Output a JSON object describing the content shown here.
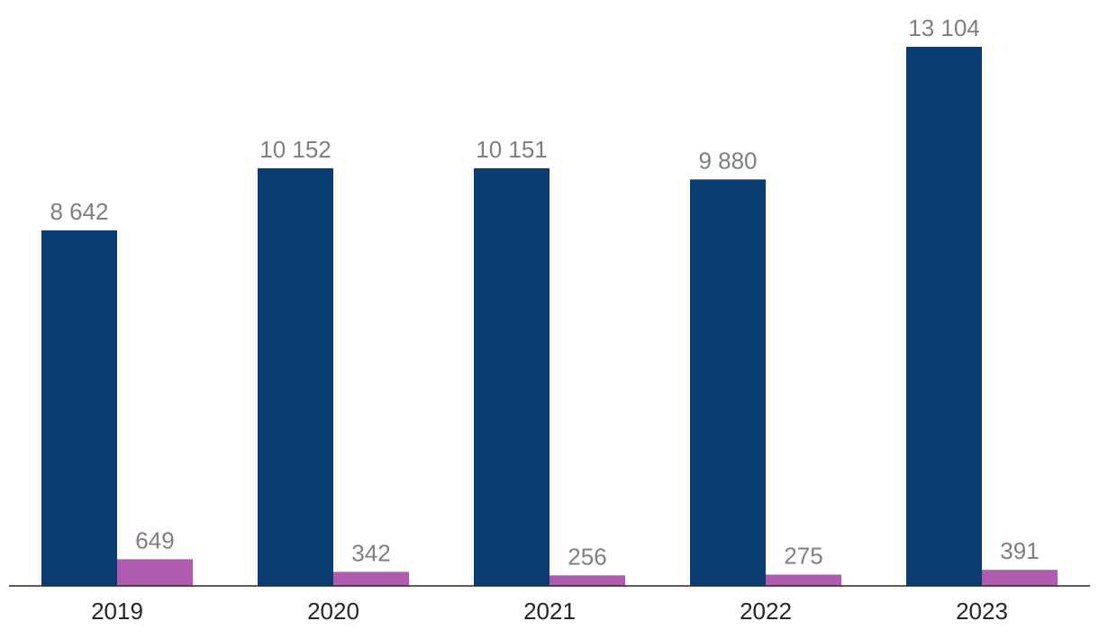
{
  "chart_data": {
    "type": "bar",
    "title": "",
    "xlabel": "",
    "ylabel": "",
    "categories": [
      "2019",
      "2020",
      "2021",
      "2022",
      "2023"
    ],
    "category_labels": [
      "2019",
      "2020",
      "2021",
      "2022",
      "2023"
    ],
    "ylim": [
      0,
      13104
    ],
    "grid": false,
    "legend": "none",
    "series": [
      {
        "values": [
          8642,
          10152,
          10151,
          9880,
          13104
        ],
        "value_labels": [
          "8 642",
          "10 152",
          "10 151",
          "9 880",
          "13 104"
        ],
        "color": "#0b3c74"
      },
      {
        "values": [
          649,
          342,
          256,
          275,
          391
        ],
        "value_labels": [
          "649",
          "342",
          "256",
          "275",
          "391"
        ],
        "color": "#b05bb0"
      }
    ],
    "colors": {
      "value_label": "#7f7f7f",
      "tick_label": "#262626",
      "axis": "#262626"
    }
  }
}
